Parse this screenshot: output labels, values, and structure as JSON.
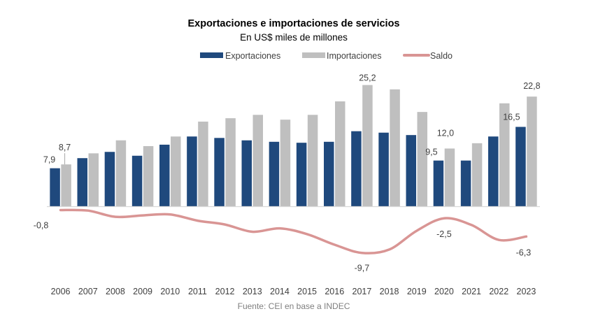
{
  "chart_data": {
    "type": "bar",
    "title": "Exportaciones e importaciones de servicios",
    "subtitle": "En US$ miles de millones",
    "source": "Fuente: CEI en base a INDEC",
    "xlabel": "",
    "ylabel": "",
    "ylim": [
      -12,
      26
    ],
    "grid": false,
    "legend_position": "top",
    "categories": [
      "2006",
      "2007",
      "2008",
      "2009",
      "2010",
      "2011",
      "2012",
      "2013",
      "2014",
      "2015",
      "2016",
      "2017",
      "2018",
      "2019",
      "2020",
      "2021",
      "2022",
      "2023"
    ],
    "series": [
      {
        "name": "Exportaciones",
        "type": "bar",
        "color": "#1F497D",
        "values": [
          7.9,
          10.0,
          11.3,
          10.5,
          12.8,
          14.5,
          14.2,
          13.7,
          13.4,
          13.2,
          13.4,
          15.6,
          15.3,
          14.8,
          9.5,
          9.5,
          14.5,
          16.5
        ]
      },
      {
        "name": "Importaciones",
        "type": "bar",
        "color": "#BFBFBF",
        "values": [
          8.7,
          11.0,
          13.7,
          12.5,
          14.5,
          17.6,
          18.3,
          19.0,
          18.0,
          19.0,
          21.8,
          25.2,
          24.3,
          19.6,
          12.0,
          13.1,
          21.4,
          22.8
        ]
      },
      {
        "name": "Saldo",
        "type": "line",
        "color": "#D99594",
        "values": [
          -0.8,
          -0.9,
          -2.2,
          -1.9,
          -1.7,
          -3.0,
          -3.8,
          -5.3,
          -4.6,
          -5.8,
          -8.0,
          -9.7,
          -9.0,
          -5.1,
          -2.5,
          -3.9,
          -7.0,
          -6.3
        ]
      }
    ],
    "data_labels": [
      {
        "series": "Exportaciones",
        "category": "2006",
        "text": "7,9"
      },
      {
        "series": "Importaciones",
        "category": "2006",
        "text": "8,7"
      },
      {
        "series": "Importaciones",
        "category": "2017",
        "text": "25,2"
      },
      {
        "series": "Exportaciones",
        "category": "2020",
        "text": "9,5"
      },
      {
        "series": "Importaciones",
        "category": "2020",
        "text": "12,0"
      },
      {
        "series": "Exportaciones",
        "category": "2023",
        "text": "16,5"
      },
      {
        "series": "Importaciones",
        "category": "2023",
        "text": "22,8"
      },
      {
        "series": "Saldo",
        "category": "2006",
        "text": "-0,8"
      },
      {
        "series": "Saldo",
        "category": "2017",
        "text": "-9,7"
      },
      {
        "series": "Saldo",
        "category": "2020",
        "text": "-2,5"
      },
      {
        "series": "Saldo",
        "category": "2023",
        "text": "-6,3"
      }
    ]
  }
}
